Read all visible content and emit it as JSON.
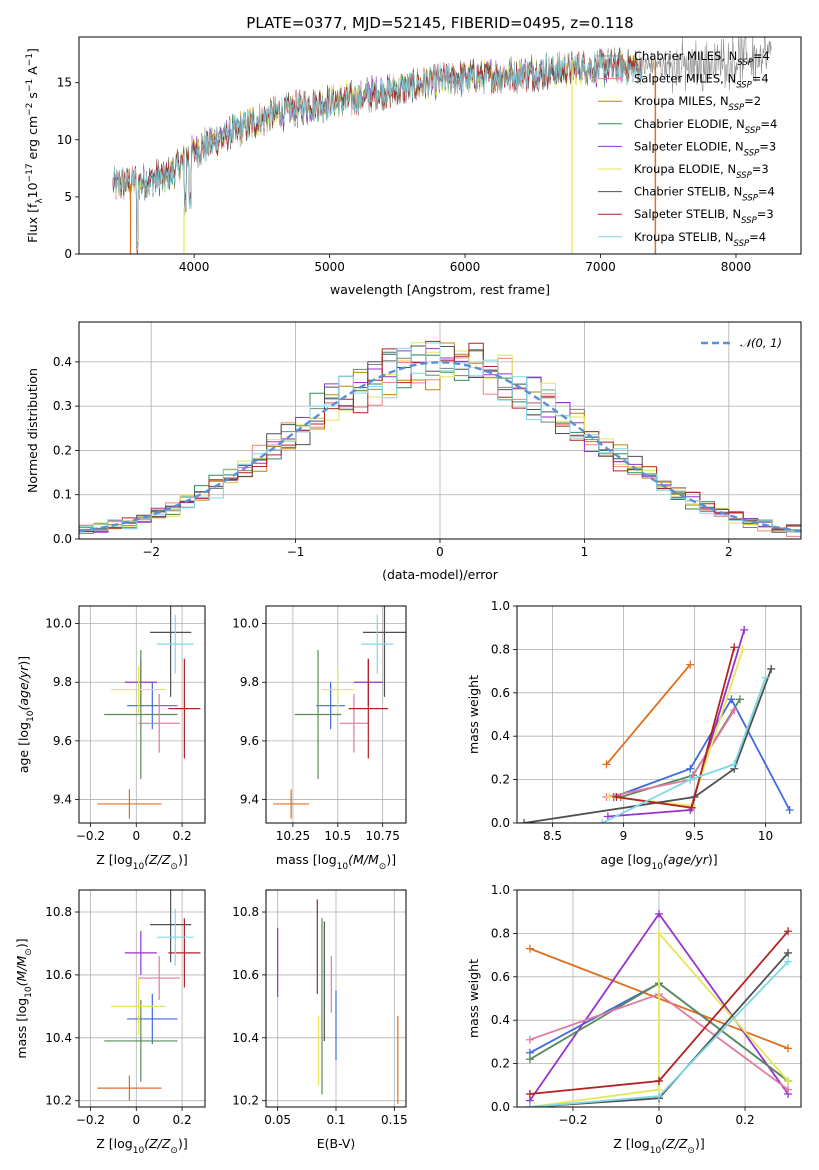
{
  "figure": {
    "title": "PLATE=0377, MJD=52145, FIBERID=0495, z=0.118"
  },
  "legend_spectrum": [
    {
      "label": "Chabrier MILES, N",
      "sub": "SSP",
      "tail": "=4",
      "color": "#808080"
    },
    {
      "label": "Salpeter MILES, N",
      "sub": "SSP",
      "tail": "=4",
      "color": "#f08080"
    },
    {
      "label": "Kroupa MILES, N",
      "sub": "SSP",
      "tail": "=2",
      "color": "#b8860b"
    },
    {
      "label": "Chabrier ELODIE, N",
      "sub": "SSP",
      "tail": "=4",
      "color": "#2e8b57"
    },
    {
      "label": "Salpeter ELODIE, N",
      "sub": "SSP",
      "tail": "=3",
      "color": "#9932cc"
    },
    {
      "label": "Kroupa ELODIE, N",
      "sub": "SSP",
      "tail": "=3",
      "color": "#e6e65a"
    },
    {
      "label": "Chabrier STELIB, N",
      "sub": "SSP",
      "tail": "=4",
      "color": "#505050"
    },
    {
      "label": "Salpeter STELIB, N",
      "sub": "SSP",
      "tail": "=3",
      "color": "#b22222"
    },
    {
      "label": "Kroupa STELIB, N",
      "sub": "SSP",
      "tail": "=4",
      "color": "#7ed8e6"
    }
  ],
  "legend_hist": {
    "label": "𝒩(0, 1)",
    "color": "#5b8fd6"
  },
  "chart_data": [
    {
      "id": "spectrum",
      "type": "line",
      "xlabel": "wavelength [Angstrom, rest frame]",
      "ylabel": "Flux [f",
      "ylabel_parts": [
        "Flux [f",
        "λ",
        "10",
        "−17",
        " erg cm",
        "−2",
        " s",
        "−1",
        " A",
        "−1",
        "]"
      ],
      "xlim": [
        3150,
        8480
      ],
      "ylim": [
        0,
        19
      ],
      "xticks": [
        4000,
        5000,
        6000,
        7000,
        8000
      ],
      "yticks": [
        0,
        5,
        10,
        15
      ],
      "continuum_x": [
        3400,
        3600,
        3800,
        4000,
        4200,
        4400,
        4600,
        4800,
        5000,
        5200,
        5400,
        5600,
        5800,
        6000,
        6200,
        6400,
        6600,
        6800,
        7000,
        7200,
        7400,
        7600,
        7800,
        8000,
        8200
      ],
      "continuum_y": [
        6.0,
        6.3,
        6.8,
        9.0,
        10.2,
        11.3,
        12.2,
        12.8,
        13.3,
        13.7,
        14.2,
        14.6,
        15.1,
        15.4,
        15.6,
        15.8,
        16.0,
        16.2,
        16.3,
        16.4,
        16.5,
        16.6,
        16.8,
        16.9,
        17.0
      ]
    },
    {
      "id": "residual_hist",
      "type": "step",
      "xlabel": "(data-model)/error",
      "ylabel": "Normed distribution",
      "xlim": [
        -2.5,
        2.5
      ],
      "ylim": [
        0,
        0.49
      ],
      "xticks": [
        -2,
        -1,
        0,
        1,
        2
      ],
      "yticks": [
        0.0,
        0.1,
        0.2,
        0.3,
        0.4
      ],
      "grid": true,
      "legend": "top-right",
      "bin_width": 0.1
    },
    {
      "id": "age_vs_Z",
      "type": "errorbar",
      "xlabel": "Z [log10(Z/Z⊙)]",
      "ylabel": "age  [log10(age/yr)]",
      "xlim": [
        -0.25,
        0.3
      ],
      "ylim": [
        9.32,
        10.06
      ],
      "xticks": [
        -0.2,
        0.0,
        0.2
      ],
      "yticks": [
        9.4,
        9.6,
        9.8,
        10.0
      ],
      "grid": true,
      "points": [
        {
          "x": 0.07,
          "xerr": 0.11,
          "y": 9.72,
          "yerr": 0.08,
          "color": "#4169e1"
        },
        {
          "x": -0.03,
          "xerr": 0.14,
          "y": 9.385,
          "yerr": 0.05,
          "color": "#e07020"
        },
        {
          "x": 0.02,
          "xerr": 0.07,
          "y": 9.8,
          "yerr": 0.08,
          "color": "#9932cc"
        },
        {
          "x": 0.02,
          "xerr": 0.16,
          "y": 9.69,
          "yerr": 0.22,
          "color": "#5a8a5a"
        },
        {
          "x": 0.1,
          "xerr": 0.09,
          "y": 9.66,
          "yerr": 0.1,
          "color": "#e07aa0"
        },
        {
          "x": 0.01,
          "xerr": 0.12,
          "y": 9.775,
          "yerr": 0.08,
          "color": "#e6e65a"
        },
        {
          "x": 0.15,
          "xerr": 0.09,
          "y": 9.97,
          "yerr": 0.22,
          "color": "#505050"
        },
        {
          "x": 0.21,
          "xerr": 0.07,
          "y": 9.71,
          "yerr": 0.17,
          "color": "#b22222"
        },
        {
          "x": 0.17,
          "xerr": 0.08,
          "y": 9.93,
          "yerr": 0.1,
          "color": "#7ed8e6"
        }
      ]
    },
    {
      "id": "age_vs_mass",
      "type": "errorbar",
      "xlabel": "mass [log10(M/M⊙)]",
      "ylabel": "",
      "xlim": [
        10.1,
        10.88
      ],
      "ylim": [
        9.32,
        10.06
      ],
      "xticks": [
        10.25,
        10.5,
        10.75
      ],
      "yticks": [
        9.4,
        9.6,
        9.8,
        10.0
      ],
      "grid": true,
      "points": [
        {
          "x": 10.46,
          "xerr": 0.08,
          "y": 9.72,
          "yerr": 0.08,
          "color": "#4169e1"
        },
        {
          "x": 10.24,
          "xerr": 0.1,
          "y": 9.385,
          "yerr": 0.05,
          "color": "#e07020"
        },
        {
          "x": 10.67,
          "xerr": 0.08,
          "y": 9.8,
          "yerr": 0.08,
          "color": "#9932cc"
        },
        {
          "x": 10.39,
          "xerr": 0.13,
          "y": 9.69,
          "yerr": 0.22,
          "color": "#5a8a5a"
        },
        {
          "x": 10.59,
          "xerr": 0.08,
          "y": 9.66,
          "yerr": 0.1,
          "color": "#e07aa0"
        },
        {
          "x": 10.5,
          "xerr": 0.09,
          "y": 9.775,
          "yerr": 0.08,
          "color": "#e6e65a"
        },
        {
          "x": 10.76,
          "xerr": 0.12,
          "y": 9.97,
          "yerr": 0.22,
          "color": "#505050"
        },
        {
          "x": 10.67,
          "xerr": 0.11,
          "y": 9.71,
          "yerr": 0.17,
          "color": "#b22222"
        },
        {
          "x": 10.72,
          "xerr": 0.09,
          "y": 9.93,
          "yerr": 0.1,
          "color": "#7ed8e6"
        }
      ]
    },
    {
      "id": "weight_vs_age",
      "type": "line",
      "xlabel": "age  [log10(age/yr)]",
      "ylabel": "mass weight",
      "xlim": [
        8.25,
        10.25
      ],
      "ylim": [
        0,
        1.0
      ],
      "xticks": [
        8.5,
        9.0,
        9.5,
        10.0
      ],
      "yticks": [
        0.0,
        0.2,
        0.4,
        0.6,
        0.8,
        1.0
      ],
      "grid": true,
      "series": [
        {
          "color": "#e07020",
          "x": [
            8.88,
            9.47
          ],
          "y": [
            0.27,
            0.73
          ]
        },
        {
          "color": "#4169e1",
          "x": [
            8.93,
            9.47,
            9.76,
            10.17
          ],
          "y": [
            0.12,
            0.25,
            0.57,
            0.06
          ]
        },
        {
          "color": "#9932cc",
          "x": [
            8.89,
            9.47,
            9.85
          ],
          "y": [
            0.03,
            0.06,
            0.89
          ]
        },
        {
          "color": "#5a8a5a",
          "x": [
            8.98,
            9.49,
            9.82
          ],
          "y": [
            0.12,
            0.22,
            0.57
          ]
        },
        {
          "color": "#e07aa0",
          "x": [
            8.88,
            9.47,
            9.78
          ],
          "y": [
            0.12,
            0.2,
            0.52
          ]
        },
        {
          "color": "#e6e65a",
          "x": [
            8.9,
            9.48,
            9.84
          ],
          "y": [
            0.12,
            0.08,
            0.8
          ]
        },
        {
          "color": "#505050",
          "x": [
            8.3,
            9.5,
            9.78,
            10.04
          ],
          "y": [
            0.0,
            0.12,
            0.25,
            0.71
          ]
        },
        {
          "color": "#b22222",
          "x": [
            8.95,
            9.48,
            9.78
          ],
          "y": [
            0.12,
            0.07,
            0.81
          ]
        },
        {
          "color": "#7ed8e6",
          "x": [
            8.85,
            9.47,
            9.78,
            10.0
          ],
          "y": [
            0.0,
            0.2,
            0.27,
            0.67
          ]
        }
      ]
    },
    {
      "id": "mass_vs_Z",
      "type": "errorbar",
      "xlabel": "Z [log10(Z/Z⊙)]",
      "ylabel": "mass [log10(M/M⊙)]",
      "xlim": [
        -0.25,
        0.3
      ],
      "ylim": [
        10.18,
        10.87
      ],
      "xticks": [
        -0.2,
        0.0,
        0.2
      ],
      "yticks": [
        10.2,
        10.4,
        10.6,
        10.8
      ],
      "grid": true,
      "points": [
        {
          "x": 0.07,
          "xerr": 0.11,
          "y": 10.46,
          "yerr": 0.08,
          "color": "#4169e1"
        },
        {
          "x": -0.03,
          "xerr": 0.14,
          "y": 10.24,
          "yerr": 0.04,
          "color": "#e07020"
        },
        {
          "x": 0.02,
          "xerr": 0.07,
          "y": 10.67,
          "yerr": 0.07,
          "color": "#9932cc"
        },
        {
          "x": 0.02,
          "xerr": 0.16,
          "y": 10.39,
          "yerr": 0.13,
          "color": "#5a8a5a"
        },
        {
          "x": 0.1,
          "xerr": 0.09,
          "y": 10.59,
          "yerr": 0.07,
          "color": "#e07aa0"
        },
        {
          "x": 0.01,
          "xerr": 0.12,
          "y": 10.5,
          "yerr": 0.09,
          "color": "#e6e65a"
        },
        {
          "x": 0.15,
          "xerr": 0.09,
          "y": 10.76,
          "yerr": 0.12,
          "color": "#505050"
        },
        {
          "x": 0.21,
          "xerr": 0.07,
          "y": 10.67,
          "yerr": 0.11,
          "color": "#b22222"
        },
        {
          "x": 0.17,
          "xerr": 0.08,
          "y": 10.72,
          "yerr": 0.09,
          "color": "#7ed8e6"
        }
      ]
    },
    {
      "id": "mass_vs_ebv",
      "type": "errorbar",
      "xlabel": "E(B-V)",
      "ylabel": "",
      "xlim": [
        0.04,
        0.16
      ],
      "ylim": [
        10.18,
        10.87
      ],
      "xticks": [
        0.05,
        0.1,
        0.15
      ],
      "yticks": [
        10.2,
        10.4,
        10.6,
        10.8
      ],
      "grid": true,
      "points": [
        {
          "x": 0.05,
          "y": 10.64,
          "yerr": 0.11,
          "color": "#9932cc"
        },
        {
          "x": 0.084,
          "y": 10.69,
          "yerr": 0.15,
          "color": "#b22222"
        },
        {
          "x": 0.085,
          "y": 10.36,
          "yerr": 0.11,
          "color": "#e6e65a"
        },
        {
          "x": 0.088,
          "y": 10.5,
          "yerr": 0.28,
          "color": "#5a8a5a"
        },
        {
          "x": 0.09,
          "y": 10.58,
          "yerr": 0.19,
          "color": "#505050"
        },
        {
          "x": 0.096,
          "y": 10.57,
          "yerr": 0.09,
          "color": "#e07aa0"
        },
        {
          "x": 0.1,
          "y": 10.44,
          "yerr": 0.11,
          "color": "#4169e1"
        },
        {
          "x": 0.153,
          "y": 10.33,
          "yerr": 0.14,
          "color": "#e07020"
        }
      ]
    },
    {
      "id": "weight_vs_Z",
      "type": "line",
      "xlabel": "Z [log10(Z/Z⊙)]",
      "ylabel": "mass weight",
      "xlim": [
        -0.33,
        0.33
      ],
      "ylim": [
        0,
        1.0
      ],
      "xticks": [
        -0.2,
        0.0,
        0.2
      ],
      "yticks": [
        0.0,
        0.2,
        0.4,
        0.6,
        0.8,
        1.0
      ],
      "grid": true,
      "series": [
        {
          "color": "#e07020",
          "x": [
            -0.3,
            0.3
          ],
          "y": [
            0.73,
            0.27
          ]
        },
        {
          "color": "#4169e1",
          "x": [
            -0.3,
            0.0,
            0.3
          ],
          "y": [
            0.25,
            0.57,
            0.12
          ]
        },
        {
          "color": "#9932cc",
          "x": [
            -0.3,
            0.0,
            0.3
          ],
          "y": [
            0.03,
            0.89,
            0.06
          ]
        },
        {
          "color": "#5a8a5a",
          "x": [
            -0.3,
            0.0,
            0.3
          ],
          "y": [
            0.22,
            0.57,
            0.12
          ]
        },
        {
          "color": "#e07aa0",
          "x": [
            -0.3,
            0.0,
            0.3
          ],
          "y": [
            0.31,
            0.52,
            0.08
          ]
        },
        {
          "color": "#e6e65a",
          "x": [
            -0.3,
            0.0,
            0.0,
            0.3
          ],
          "y": [
            0.0,
            0.08,
            0.8,
            0.12
          ]
        },
        {
          "color": "#505050",
          "x": [
            -0.3,
            0.0,
            0.3
          ],
          "y": [
            0.0,
            0.04,
            0.71
          ]
        },
        {
          "color": "#b22222",
          "x": [
            -0.3,
            0.0,
            0.3
          ],
          "y": [
            0.06,
            0.12,
            0.81
          ]
        },
        {
          "color": "#7ed8e6",
          "x": [
            -0.3,
            0.0,
            0.3
          ],
          "y": [
            0.0,
            0.05,
            0.67
          ]
        }
      ]
    }
  ]
}
